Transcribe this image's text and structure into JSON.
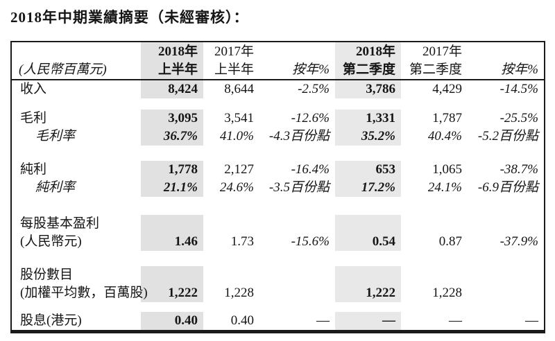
{
  "page": {
    "title": "2018年中期業績摘要（未經審核）："
  },
  "table": {
    "unit_label": "(人民幣百萬元)",
    "highlight_colors": {
      "half_year_2018": "#e1e1e1",
      "q2_2018": "#e8e8e8"
    },
    "columns": [
      {
        "year": "2018年",
        "period": "上半年",
        "highlight": true
      },
      {
        "year": "2017年",
        "period": "上半年",
        "highlight": false
      },
      {
        "year": "",
        "period": "按年%",
        "highlight": false
      },
      {
        "year": "2018年",
        "period": "第二季度",
        "highlight": true
      },
      {
        "year": "2017年",
        "period": "第二季度",
        "highlight": false
      },
      {
        "year": "",
        "period": "按年%",
        "highlight": false
      }
    ],
    "rows": [
      {
        "label": "收入",
        "values": [
          "8,424",
          "8,644",
          "-2.5%",
          "3,786",
          "4,429",
          "-14.5%"
        ]
      },
      {
        "label": "毛利",
        "values": [
          "3,095",
          "3,541",
          "-12.6%",
          "1,331",
          "1,787",
          "-25.5%"
        ]
      },
      {
        "label": "毛利率",
        "values": [
          "36.7%",
          "41.0%",
          "-4.3百份點",
          "35.2%",
          "40.4%",
          "-5.2百份點"
        ]
      },
      {
        "label": "純利",
        "values": [
          "1,778",
          "2,127",
          "-16.4%",
          "653",
          "1,065",
          "-38.7%"
        ]
      },
      {
        "label": "純利率",
        "values": [
          "21.1%",
          "24.6%",
          "-3.5百份點",
          "17.2%",
          "24.1%",
          "-6.9百份點"
        ]
      },
      {
        "label": "每股基本盈利",
        "values": [
          "",
          "",
          "",
          "",
          "",
          ""
        ]
      },
      {
        "label": "(人民幣元)",
        "values": [
          "1.46",
          "1.73",
          "-15.6%",
          "0.54",
          "0.87",
          "-37.9%"
        ]
      },
      {
        "label": "股份數目",
        "values": [
          "",
          "",
          "",
          "",
          "",
          ""
        ]
      },
      {
        "label": "(加權平均數，百萬股)",
        "values": [
          "1,222",
          "1,228",
          "",
          "1,222",
          "1,228",
          ""
        ]
      },
      {
        "label": "股息(港元)",
        "values": [
          "0.40",
          "0.40",
          "—",
          "—",
          "—",
          "—"
        ]
      }
    ]
  }
}
